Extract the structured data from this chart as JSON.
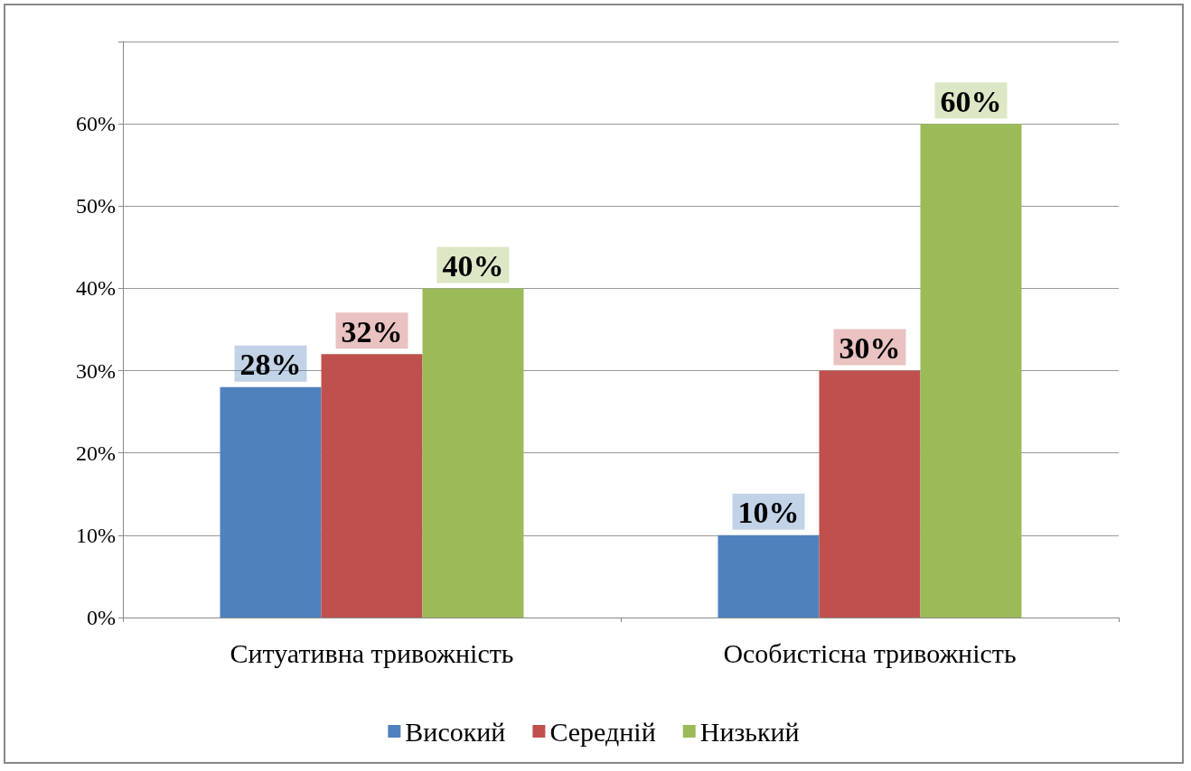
{
  "chart_data": {
    "type": "bar",
    "categories": [
      "Ситуативна тривожність",
      "Особистісна тривожність"
    ],
    "series": [
      {
        "name": "Високий",
        "color": "#4f81bd",
        "values": [
          28,
          10
        ],
        "value_labels": [
          "28%",
          "10%"
        ]
      },
      {
        "name": "Середній",
        "color": "#c0504d",
        "values": [
          32,
          30
        ],
        "value_labels": [
          "32%",
          "30%"
        ]
      },
      {
        "name": "Низький",
        "color": "#9bbb59",
        "values": [
          40,
          60
        ],
        "value_labels": [
          "40%",
          "60%"
        ]
      }
    ],
    "ylim": [
      0,
      70
    ],
    "yticks": [
      {
        "value": 0,
        "label": "0%"
      },
      {
        "value": 10,
        "label": "10%"
      },
      {
        "value": 20,
        "label": "20%"
      },
      {
        "value": 30,
        "label": "30%"
      },
      {
        "value": 40,
        "label": "40%"
      },
      {
        "value": 50,
        "label": "50%"
      },
      {
        "value": 60,
        "label": "60%"
      },
      {
        "value": 70,
        "label": null
      }
    ],
    "grid": "y",
    "legend": "bottom"
  }
}
